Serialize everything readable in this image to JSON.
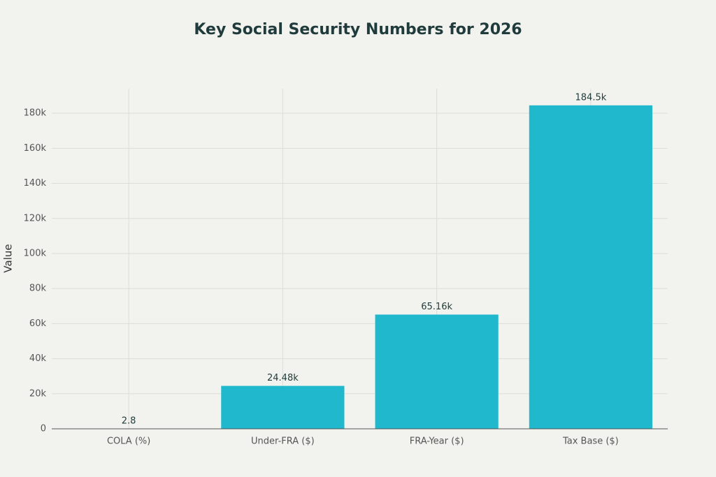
{
  "chart_data": {
    "type": "bar",
    "title": "Key Social Security Numbers for 2026",
    "y_label": "Value",
    "categories": [
      "COLA (%)",
      "Under-FRA ($)",
      "FRA-Year ($)",
      "Tax Base ($)"
    ],
    "values": [
      2.8,
      24480,
      65160,
      184500
    ],
    "value_labels": [
      "2.8",
      "24.48k",
      "65.16k",
      "184.5k"
    ],
    "color": "#20b8cc",
    "ylim": [
      0,
      194000
    ],
    "yticks": [
      0,
      {
        "value": 20000,
        "label": "20k"
      },
      {
        "value": 40000,
        "label": "40k"
      },
      {
        "value": 60000,
        "label": "60k"
      },
      {
        "value": 80000,
        "label": "80k"
      },
      {
        "value": 100000,
        "label": "100k"
      },
      {
        "value": 120000,
        "label": "120k"
      },
      {
        "value": 140000,
        "label": "140k"
      },
      {
        "value": 160000,
        "label": "160k"
      },
      {
        "value": 180000,
        "label": "180k"
      }
    ],
    "grid": true
  }
}
